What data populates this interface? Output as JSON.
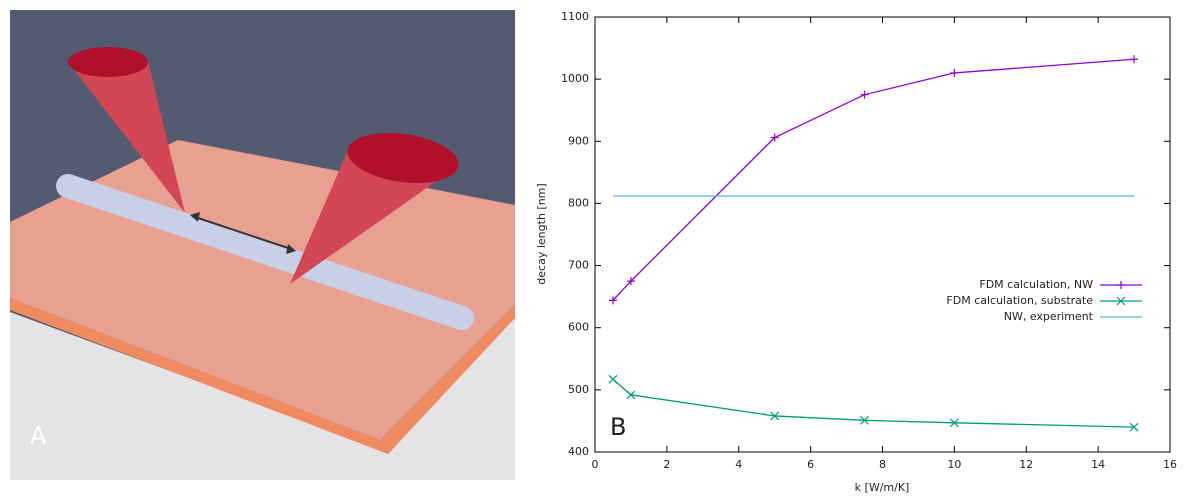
{
  "panel_a": {
    "label": "A"
  },
  "chart_data": {
    "type": "line",
    "panel_label": "B",
    "xlabel": "k [W/m/K]",
    "ylabel": "decay length [nm]",
    "xlim": [
      0,
      16
    ],
    "xticks": [
      0,
      2,
      4,
      6,
      8,
      10,
      12,
      14,
      16
    ],
    "ylim": [
      400,
      1100
    ],
    "yticks": [
      400,
      500,
      600,
      700,
      800,
      900,
      1000,
      1100
    ],
    "legend": "right",
    "series": [
      {
        "name": "FDM calculation, NW",
        "color": "#9400d3",
        "marker": "plus",
        "x": [
          0.5,
          1,
          5,
          7.5,
          10,
          15
        ],
        "values": [
          644,
          675,
          906,
          975,
          1010,
          1032
        ]
      },
      {
        "name": "FDM calculation, substrate",
        "color": "#009e73",
        "marker": "cross",
        "x": [
          0.5,
          1,
          5,
          7.5,
          10,
          15
        ],
        "values": [
          517,
          492,
          458,
          451,
          447,
          440
        ]
      },
      {
        "name": "NW, experiment",
        "color": "#56b4e9",
        "marker": "none",
        "x": [
          0.5,
          15
        ],
        "values": [
          812,
          812
        ]
      }
    ]
  }
}
